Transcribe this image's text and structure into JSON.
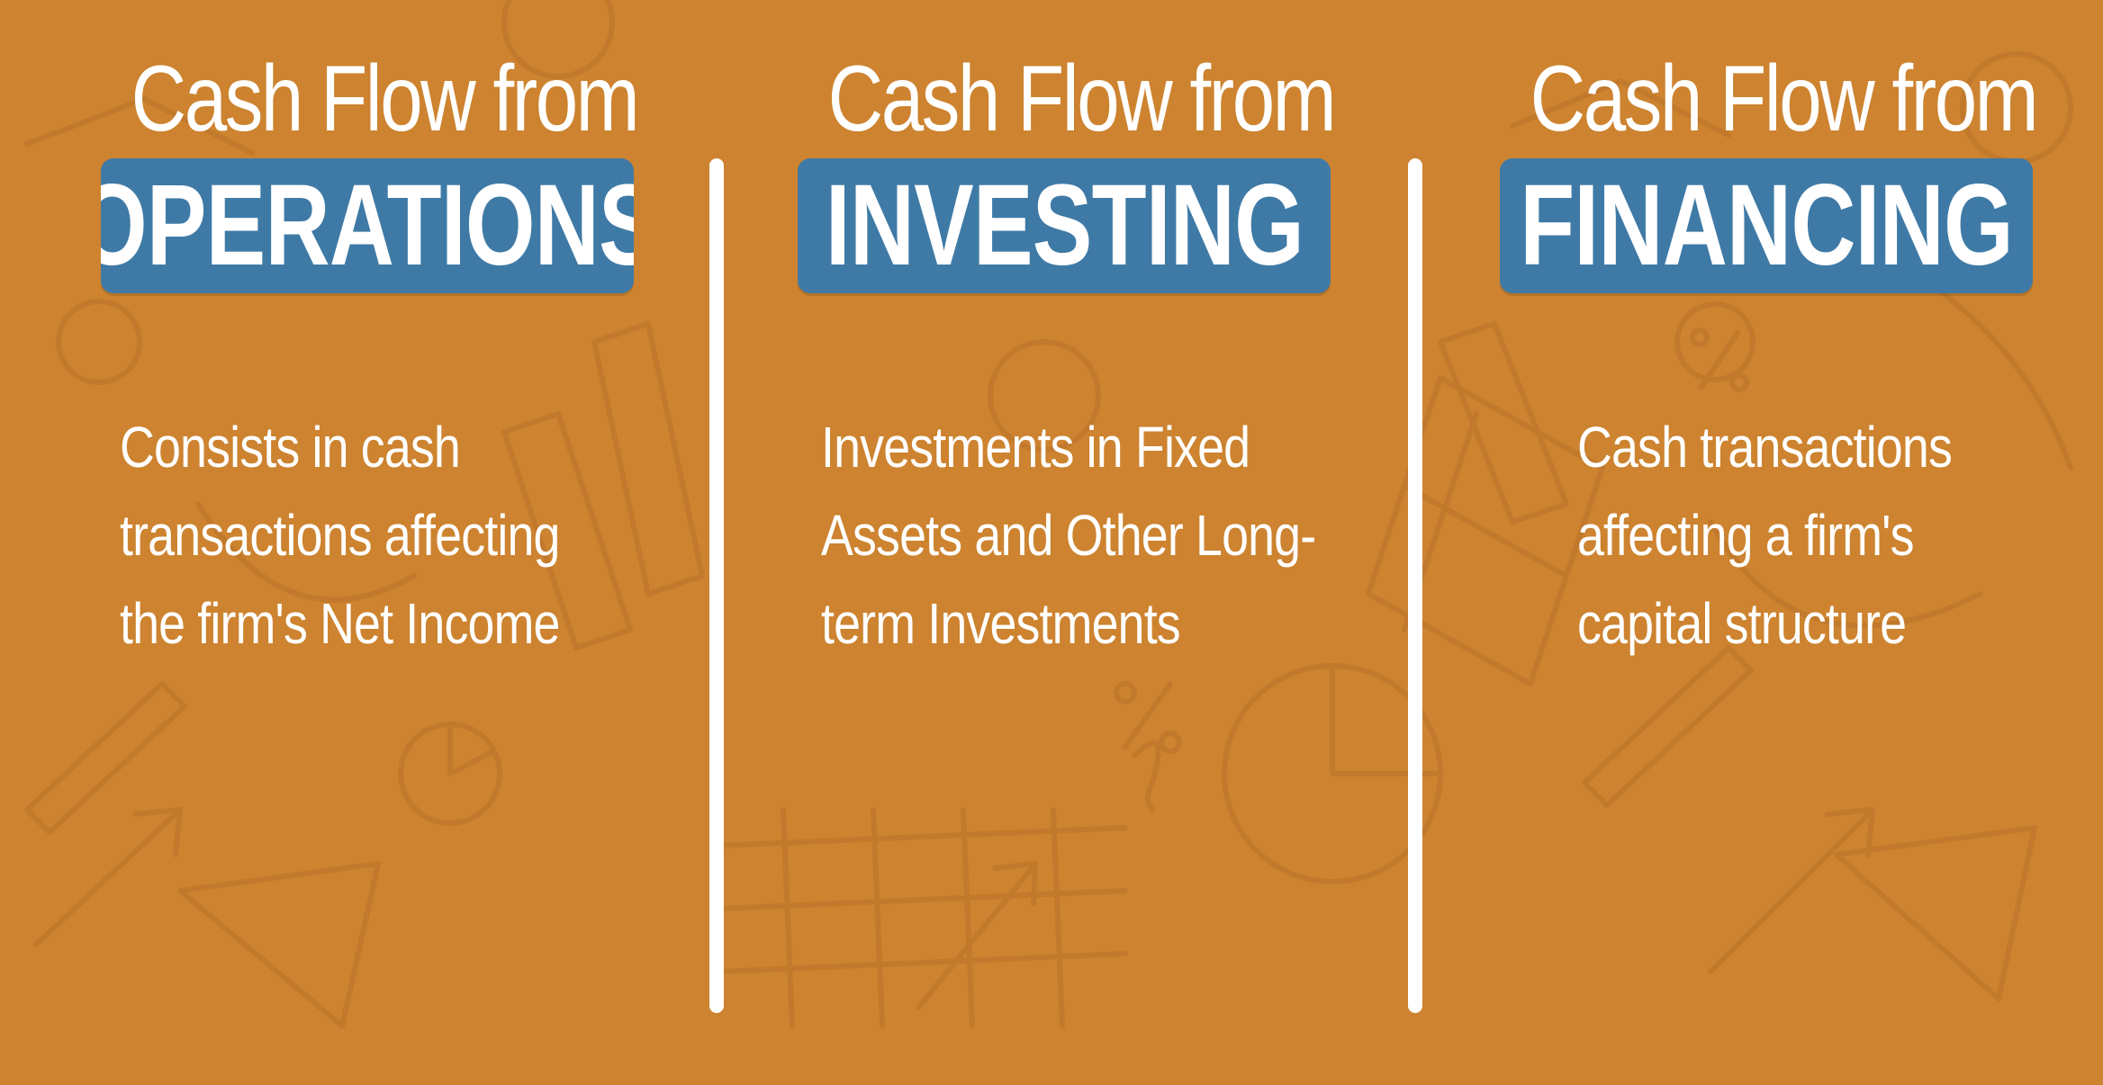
{
  "columns": [
    {
      "heading": "Cash Flow from",
      "banner": "OPERATIONS",
      "lines": [
        "Consists in cash",
        "transactions affecting",
        "the firm's Net Income"
      ]
    },
    {
      "heading": "Cash Flow from",
      "banner": "INVESTING",
      "lines": [
        "Investments in Fixed",
        "Assets and Other Long-",
        "term Investments"
      ]
    },
    {
      "heading": "Cash Flow from",
      "banner": "FINANCING",
      "lines": [
        "Cash transactions",
        "affecting a firm's",
        "capital structure"
      ]
    }
  ],
  "colors": {
    "background": "#cd832f",
    "banner": "#3f7aa6",
    "text": "#ffffff"
  }
}
